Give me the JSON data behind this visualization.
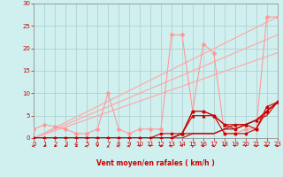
{
  "bg_color": "#d0f0f0",
  "grid_color": "#aacccc",
  "axis_color": "#cc0000",
  "xlabel": "Vent moyen/en rafales ( km/h )",
  "xlim": [
    0,
    23
  ],
  "ylim": [
    0,
    30
  ],
  "xticks": [
    0,
    1,
    2,
    3,
    4,
    5,
    6,
    7,
    8,
    9,
    10,
    11,
    12,
    13,
    14,
    15,
    16,
    17,
    18,
    19,
    20,
    21,
    22,
    23
  ],
  "yticks": [
    0,
    5,
    10,
    15,
    20,
    25,
    30
  ],
  "lines": [
    {
      "x": [
        0,
        1,
        2,
        3,
        4,
        5,
        6,
        7,
        8,
        9,
        10,
        11,
        12,
        13,
        14,
        15,
        16,
        17,
        18,
        19,
        20,
        21,
        22,
        23
      ],
      "y": [
        2,
        3,
        2.5,
        2,
        1,
        1,
        2,
        10,
        2,
        1,
        2,
        2,
        2,
        23,
        23,
        6,
        21,
        19,
        1,
        1,
        2,
        2,
        27,
        27
      ],
      "color": "#ff9999",
      "lw": 0.8,
      "marker": "D",
      "ms": 2.0,
      "zorder": 3
    },
    {
      "x": [
        0,
        1,
        2,
        3,
        4,
        5,
        6,
        7,
        8,
        9,
        10,
        11,
        12,
        13,
        14,
        15,
        16,
        17,
        18,
        19,
        20,
        21,
        22,
        23
      ],
      "y": [
        0,
        0,
        0,
        0,
        0,
        0,
        0,
        0,
        0,
        0,
        0,
        0,
        1,
        1,
        1,
        6,
        6,
        5,
        1,
        1,
        1,
        2,
        6,
        8
      ],
      "color": "#cc0000",
      "lw": 0.8,
      "marker": "s",
      "ms": 1.8,
      "zorder": 4
    },
    {
      "x": [
        0,
        1,
        2,
        3,
        4,
        5,
        6,
        7,
        8,
        9,
        10,
        11,
        12,
        13,
        14,
        15,
        16,
        17,
        18,
        19,
        20,
        21,
        22,
        23
      ],
      "y": [
        0,
        0,
        0,
        0,
        0,
        0,
        0,
        0,
        0,
        0,
        0,
        0,
        0,
        0,
        1,
        5,
        5,
        5,
        3,
        3,
        3,
        4,
        6,
        8
      ],
      "color": "#cc0000",
      "lw": 0.8,
      "marker": "^",
      "ms": 2.0,
      "zorder": 4
    },
    {
      "x": [
        0,
        1,
        2,
        3,
        4,
        5,
        6,
        7,
        8,
        9,
        10,
        11,
        12,
        13,
        14,
        15,
        16,
        17,
        18,
        19,
        20,
        21,
        22,
        23
      ],
      "y": [
        0,
        0,
        0,
        0,
        0,
        0,
        0,
        0,
        0,
        0,
        0,
        0,
        0,
        0,
        1,
        6,
        6,
        5,
        3,
        2,
        3,
        2,
        7,
        8
      ],
      "color": "#cc0000",
      "lw": 0.8,
      "marker": "o",
      "ms": 1.8,
      "zorder": 4
    },
    {
      "x": [
        0,
        1,
        2,
        3,
        4,
        5,
        6,
        7,
        8,
        9,
        10,
        11,
        12,
        13,
        14,
        15,
        16,
        17,
        18,
        19,
        20,
        21,
        22,
        23
      ],
      "y": [
        0,
        0,
        0,
        0,
        0,
        0,
        0,
        0,
        0,
        0,
        0,
        0,
        0,
        0,
        0,
        1,
        1,
        1,
        2,
        3,
        3,
        4,
        5,
        8
      ],
      "color": "#cc0000",
      "lw": 0.8,
      "marker": null,
      "ms": 0,
      "zorder": 4
    },
    {
      "x": [
        0,
        1,
        2,
        3,
        4,
        5,
        6,
        7,
        8,
        9,
        10,
        11,
        12,
        13,
        14,
        15,
        16,
        17,
        18,
        19,
        20,
        21,
        22,
        23
      ],
      "y": [
        0,
        0,
        0,
        0,
        0,
        0,
        0,
        0,
        0,
        0,
        0,
        0,
        0,
        0,
        1,
        1,
        1,
        1,
        2,
        2,
        3,
        4,
        6,
        8
      ],
      "color": "#990000",
      "lw": 0.8,
      "marker": null,
      "ms": 0,
      "zorder": 3
    }
  ],
  "diagonals": [
    {
      "x": [
        0,
        23
      ],
      "y": [
        0,
        27
      ],
      "color": "#ffaaaa",
      "lw": 0.9
    },
    {
      "x": [
        0,
        23
      ],
      "y": [
        0,
        23
      ],
      "color": "#ffaaaa",
      "lw": 0.9
    },
    {
      "x": [
        0,
        23
      ],
      "y": [
        0,
        19
      ],
      "color": "#ffaaaa",
      "lw": 0.9
    }
  ],
  "wind_angles": [
    180,
    225,
    225,
    225,
    225,
    180,
    270,
    90,
    180,
    180,
    270,
    270,
    225,
    180,
    270,
    45,
    315,
    315,
    270,
    270,
    270,
    315,
    315,
    315
  ]
}
